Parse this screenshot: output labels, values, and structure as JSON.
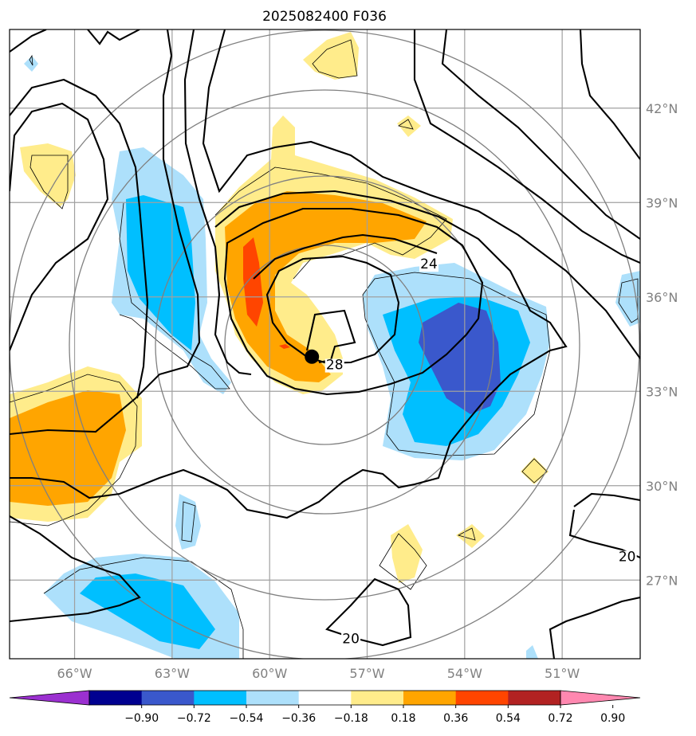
{
  "title": "2025082400 F036",
  "map": {
    "lon_range": [
      -68,
      -48.6
    ],
    "lat_range": [
      24.5,
      44.5
    ],
    "lon_ticks": [
      {
        "value": -66,
        "label": "66°W"
      },
      {
        "value": -63,
        "label": "63°W"
      },
      {
        "value": -60,
        "label": "60°W"
      },
      {
        "value": -57,
        "label": "57°W"
      },
      {
        "value": -54,
        "label": "54°W"
      },
      {
        "value": -51,
        "label": "51°W"
      }
    ],
    "lat_ticks": [
      {
        "value": 42,
        "label": "42°N"
      },
      {
        "value": 39,
        "label": "39°N"
      },
      {
        "value": 36,
        "label": "36°N"
      },
      {
        "value": 33,
        "label": "33°N"
      },
      {
        "value": 30,
        "label": "30°N"
      },
      {
        "value": 27,
        "label": "27°N"
      }
    ],
    "grid": true,
    "storm_center": {
      "lon": -58.7,
      "lat": 34.1
    },
    "contour_labels": [
      {
        "text": "24",
        "lon": -55.1,
        "lat": 36.9
      },
      {
        "text": "28",
        "lon": -58.0,
        "lat": 33.7
      },
      {
        "text": "20",
        "lon": -57.5,
        "lat": 25.0
      },
      {
        "text": "20",
        "lon": -49.0,
        "lat": 27.6
      }
    ]
  },
  "colorbar": {
    "colors": [
      "#9b30d0",
      "#000090",
      "#3a58cc",
      "#00bfff",
      "#ade0fb",
      "#ffffff",
      "#ffec8b",
      "#ffa500",
      "#ff4500",
      "#b22222",
      "#ff88b0"
    ],
    "ticks": [
      "−0.90",
      "−0.72",
      "−0.54",
      "−0.36",
      "−0.18",
      "0.18",
      "0.36",
      "0.54",
      "0.72",
      "0.90"
    ],
    "extend": "both"
  }
}
